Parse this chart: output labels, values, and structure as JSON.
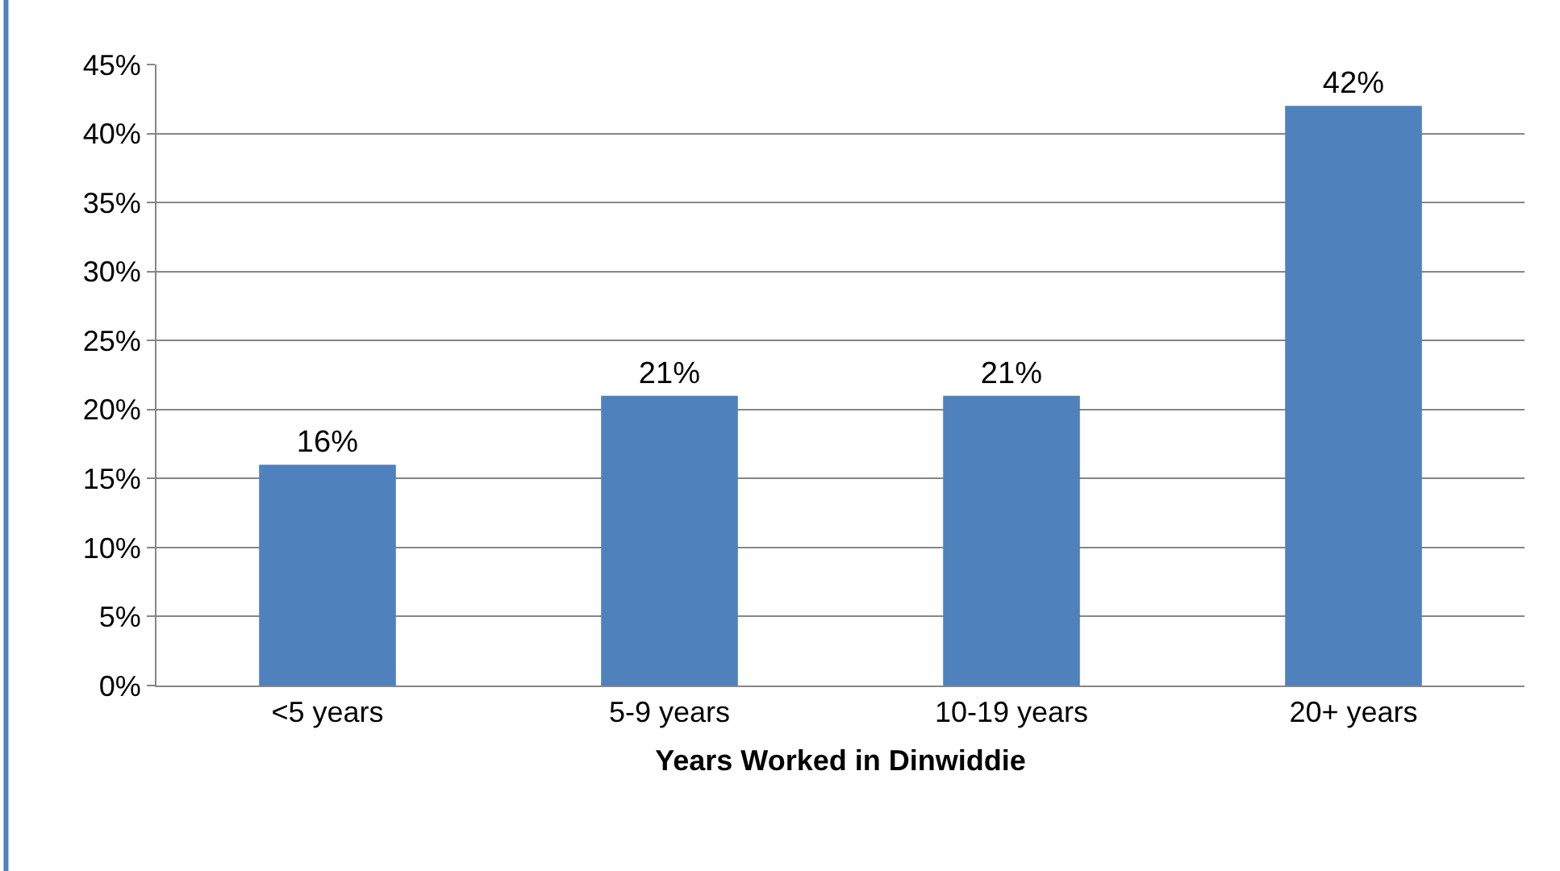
{
  "chart_data": {
    "type": "bar",
    "xlabel": "Years Worked in Dinwiddie",
    "categories": [
      "<5 years",
      "5-9 years",
      "10-19 years",
      "20+ years"
    ],
    "values": [
      16,
      21,
      21,
      42
    ],
    "color": "#4f81bd",
    "value_labels": [
      "16%",
      "21%",
      "21%",
      "42%"
    ],
    "ylim": [
      0,
      45
    ],
    "yticks": [
      {
        "value": 0,
        "label": "0%"
      },
      {
        "value": 5,
        "label": "5%"
      },
      {
        "value": 10,
        "label": "10%"
      },
      {
        "value": 15,
        "label": "15%"
      },
      {
        "value": 20,
        "label": "20%"
      },
      {
        "value": 25,
        "label": "25%"
      },
      {
        "value": 30,
        "label": "30%"
      },
      {
        "value": 35,
        "label": "35%"
      },
      {
        "value": 40,
        "label": "40%"
      },
      {
        "value": 45,
        "label": "45%"
      }
    ],
    "grid": "y",
    "legend": false
  }
}
